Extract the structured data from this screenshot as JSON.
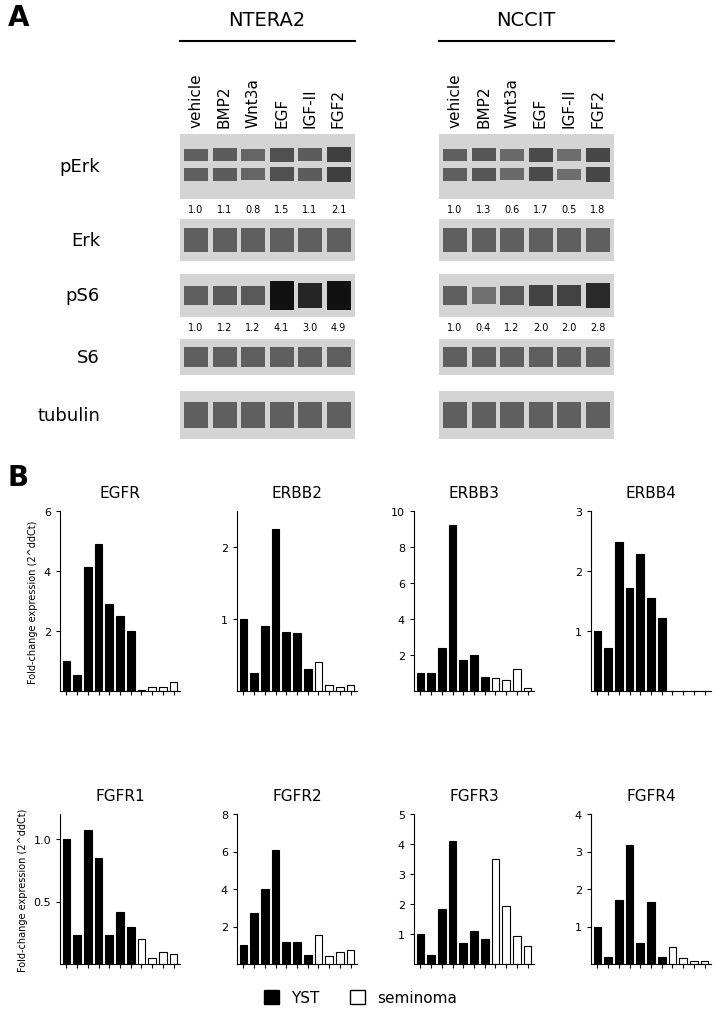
{
  "panel_labels": [
    "A",
    "B"
  ],
  "legend": "lower center",
  "blot": {
    "rows": [
      "pErk",
      "Erk",
      "pS6",
      "S6",
      "tubulin"
    ],
    "lanes": [
      "vehicle",
      "BMP2",
      "Wnt3a",
      "EGF",
      "IGF-II",
      "FGF2"
    ],
    "groups": [
      {
        "name": "NTERA2",
        "quant": {
          "pErk": [
            1.0,
            1.1,
            0.8,
            1.5,
            1.1,
            2.1
          ],
          "pS6": [
            1.0,
            1.2,
            1.2,
            4.1,
            3.0,
            4.9
          ]
        }
      },
      {
        "name": "NCCIT",
        "quant": {
          "pErk": [
            1.0,
            1.3,
            0.6,
            1.7,
            0.5,
            1.8
          ],
          "pS6": [
            1.0,
            0.4,
            1.2,
            2.0,
            2.0,
            2.8
          ]
        }
      }
    ]
  },
  "chart_data": [
    {
      "type": "bar",
      "title": "EGFR",
      "y_label": "Fold-change expression (2^ddCt)",
      "categories": [
        null,
        null,
        null,
        null,
        null,
        null,
        null,
        null,
        null,
        null,
        null
      ],
      "series": [
        {
          "name": "YST",
          "color": "#000000",
          "values": [
            1.0,
            0.55,
            4.15,
            4.9,
            2.9,
            2.5,
            2.0,
            null,
            null,
            null,
            null
          ]
        },
        {
          "name": "seminoma",
          "color": "#ffffff",
          "values": [
            null,
            null,
            null,
            null,
            null,
            null,
            null,
            0.02,
            0.15,
            0.15,
            0.3
          ]
        }
      ],
      "ylim": [
        0,
        6
      ],
      "yticks": [
        2,
        4,
        6
      ],
      "tick_labels": "y"
    },
    {
      "type": "bar",
      "title": "ERBB2",
      "categories": [
        null,
        null,
        null,
        null,
        null,
        null,
        null,
        null,
        null,
        null,
        null
      ],
      "series": [
        {
          "name": "YST",
          "color": "#000000",
          "values": [
            1.0,
            0.25,
            0.9,
            2.25,
            0.82,
            0.8,
            0.3,
            null,
            null,
            null,
            null
          ]
        },
        {
          "name": "seminoma",
          "color": "#ffffff",
          "values": [
            null,
            null,
            null,
            null,
            null,
            null,
            null,
            0.4,
            0.08,
            0.05,
            0.08
          ]
        }
      ],
      "ylim": [
        0,
        2.5
      ],
      "yticks": [
        1,
        2
      ],
      "tick_labels": "y"
    },
    {
      "type": "bar",
      "title": "ERBB3",
      "categories": [
        null,
        null,
        null,
        null,
        null,
        null,
        null,
        null,
        null,
        null,
        null
      ],
      "series": [
        {
          "name": "YST",
          "color": "#000000",
          "values": [
            1.0,
            1.0,
            2.4,
            9.2,
            1.75,
            2.0,
            0.8,
            null,
            null,
            null,
            null
          ]
        },
        {
          "name": "seminoma",
          "color": "#ffffff",
          "values": [
            null,
            null,
            null,
            null,
            null,
            null,
            null,
            0.7,
            0.6,
            1.2,
            0.15
          ]
        }
      ],
      "ylim": [
        0,
        10
      ],
      "yticks": [
        2,
        4,
        6,
        8,
        10
      ],
      "tick_labels": "y"
    },
    {
      "type": "bar",
      "title": "ERBB4",
      "categories": [
        null,
        null,
        null,
        null,
        null,
        null,
        null,
        null,
        null,
        null,
        null
      ],
      "series": [
        {
          "name": "YST",
          "color": "#000000",
          "values": [
            1.0,
            0.72,
            2.48,
            1.72,
            2.28,
            1.55,
            1.22,
            null,
            null,
            null,
            null
          ]
        },
        {
          "name": "seminoma",
          "color": "#ffffff",
          "values": [
            null,
            null,
            null,
            null,
            null,
            null,
            null,
            0,
            0,
            0,
            0
          ]
        }
      ],
      "ylim": [
        0,
        3
      ],
      "yticks": [
        1,
        2,
        3
      ],
      "tick_labels": "y"
    },
    {
      "type": "bar",
      "title": "FGFR1",
      "y_label": "Fold-change expression (2^ddCt)",
      "categories": [
        null,
        null,
        null,
        null,
        null,
        null,
        null,
        null,
        null,
        null,
        null
      ],
      "series": [
        {
          "name": "YST",
          "color": "#000000",
          "values": [
            1.0,
            0.23,
            1.07,
            0.85,
            0.23,
            0.42,
            0.3,
            null,
            null,
            null,
            null
          ]
        },
        {
          "name": "seminoma",
          "color": "#ffffff",
          "values": [
            null,
            null,
            null,
            null,
            null,
            null,
            null,
            0.2,
            0.05,
            0.1,
            0.08
          ]
        }
      ],
      "ylim": [
        0,
        1.2
      ],
      "yticks": [
        0.5,
        {
          "value": 1,
          "label": "1.0"
        }
      ],
      "tick_labels": "y"
    },
    {
      "type": "bar",
      "title": "FGFR2",
      "categories": [
        null,
        null,
        null,
        null,
        null,
        null,
        null,
        null,
        null,
        null,
        null
      ],
      "series": [
        {
          "name": "YST",
          "color": "#000000",
          "values": [
            1.0,
            2.7,
            4.0,
            6.1,
            1.15,
            1.2,
            0.5,
            null,
            null,
            null,
            null
          ]
        },
        {
          "name": "seminoma",
          "color": "#ffffff",
          "values": [
            null,
            null,
            null,
            null,
            null,
            null,
            null,
            1.55,
            0.45,
            0.65,
            0.75
          ]
        }
      ],
      "ylim": [
        0,
        8
      ],
      "yticks": [
        2,
        4,
        6,
        8
      ],
      "tick_labels": "y"
    },
    {
      "type": "bar",
      "title": "FGFR3",
      "categories": [
        null,
        null,
        null,
        null,
        null,
        null,
        null,
        null,
        null,
        null,
        null
      ],
      "series": [
        {
          "name": "YST",
          "color": "#000000",
          "values": [
            1.0,
            0.3,
            1.85,
            4.1,
            0.7,
            1.1,
            0.85,
            null,
            null,
            null,
            null
          ]
        },
        {
          "name": "seminoma",
          "color": "#ffffff",
          "values": [
            null,
            null,
            null,
            null,
            null,
            null,
            null,
            3.5,
            1.95,
            0.95,
            0.6
          ]
        }
      ],
      "ylim": [
        0,
        5
      ],
      "yticks": [
        1,
        2,
        3,
        4,
        5
      ],
      "tick_labels": "y"
    },
    {
      "type": "bar",
      "title": "FGFR4",
      "categories": [
        null,
        null,
        null,
        null,
        null,
        null,
        null,
        null,
        null,
        null,
        null
      ],
      "series": [
        {
          "name": "YST",
          "color": "#000000",
          "values": [
            1.0,
            0.2,
            1.72,
            3.18,
            0.55,
            1.65,
            0.18,
            null,
            null,
            null,
            null
          ]
        },
        {
          "name": "seminoma",
          "color": "#ffffff",
          "values": [
            null,
            null,
            null,
            null,
            null,
            null,
            null,
            0.45,
            0.15,
            0.08,
            0.08
          ]
        }
      ],
      "ylim": [
        0,
        4
      ],
      "yticks": [
        1,
        2,
        3,
        4
      ],
      "tick_labels": "y"
    }
  ]
}
